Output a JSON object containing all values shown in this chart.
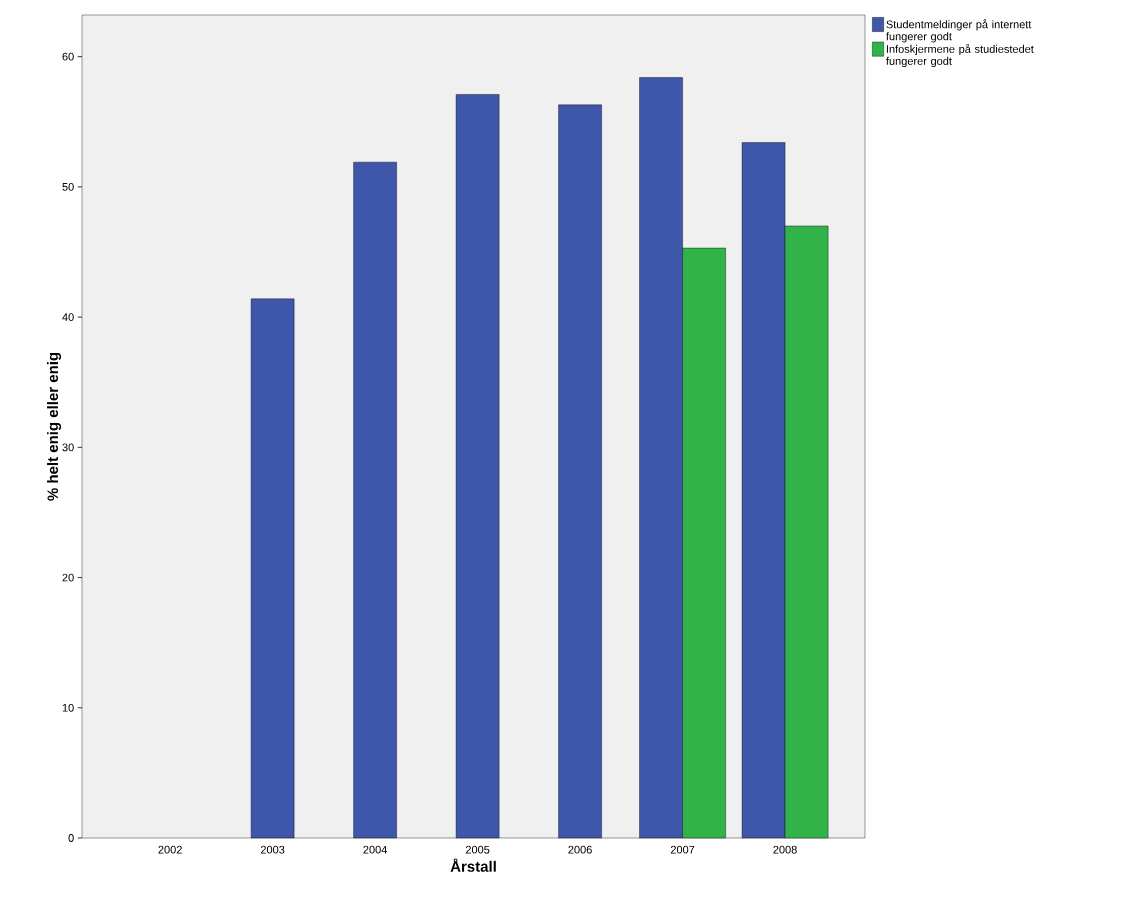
{
  "chart_data": {
    "type": "bar",
    "xlabel": "Årstall",
    "ylabel": "% helt enig eller enig",
    "categories": [
      "2002",
      "2003",
      "2004",
      "2005",
      "2006",
      "2007",
      "2008"
    ],
    "series": [
      {
        "name": "Studentmeldinger på internett fungerer godt",
        "color": "#3e57ab",
        "values": [
          null,
          41.4,
          51.9,
          57.1,
          56.3,
          58.4,
          53.4
        ]
      },
      {
        "name": "Infoskjermene på studiestedet fungerer godt",
        "color": "#32b349",
        "values": [
          null,
          null,
          null,
          null,
          null,
          45.3,
          47.0
        ]
      }
    ],
    "ylim": [
      0,
      63.2
    ],
    "yticks": [
      0,
      10,
      20,
      30,
      40,
      50,
      60
    ],
    "grid": false,
    "legend": "top right"
  }
}
